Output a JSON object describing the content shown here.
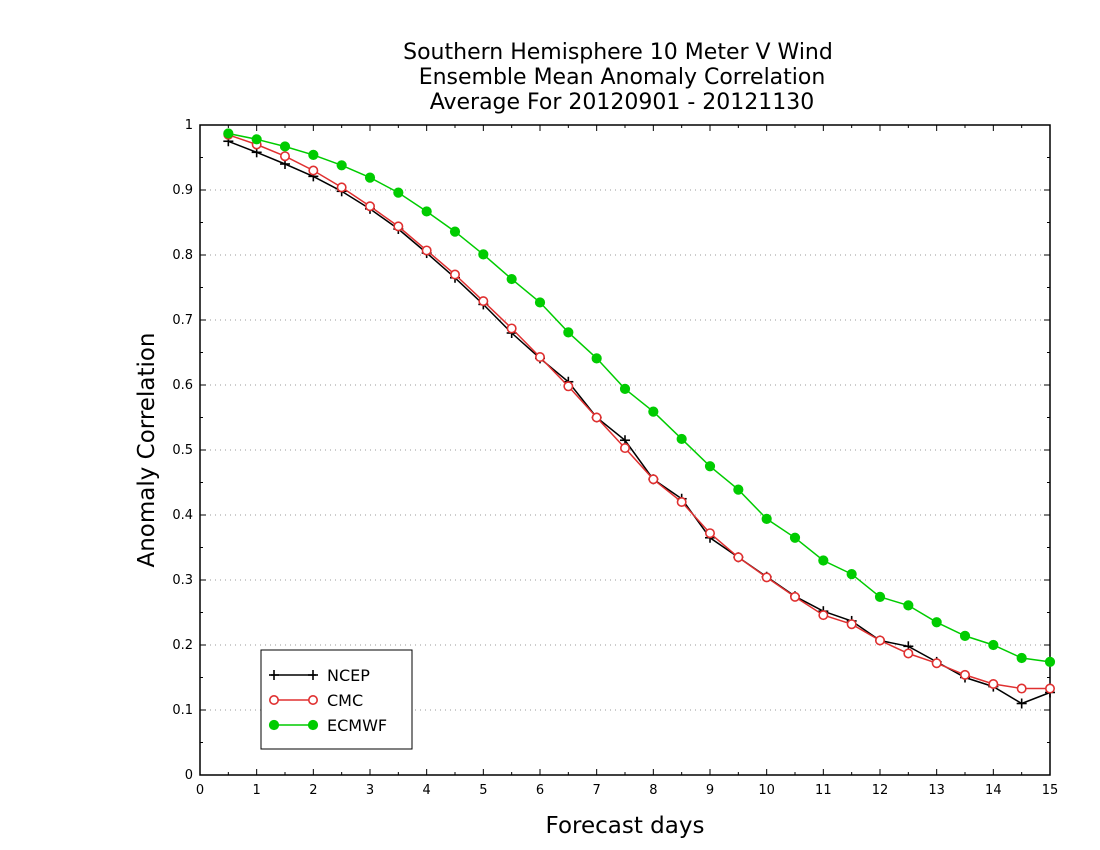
{
  "chart_data": {
    "type": "line",
    "title_lines": [
      "Southern Hemisphere 10 Meter V Wind",
      "Ensemble Mean Anomaly Correlation",
      "Average For 20120901 - 20121130"
    ],
    "xlabel": "Forecast days",
    "ylabel": "Anomaly Correlation",
    "xlim": [
      0,
      15
    ],
    "ylim": [
      0,
      1
    ],
    "x_ticks": [
      "0",
      "1",
      "2",
      "3",
      "4",
      "5",
      "6",
      "7",
      "8",
      "9",
      "10",
      "11",
      "12",
      "13",
      "14",
      "15"
    ],
    "y_ticks": [
      "0",
      "0.1",
      "0.2",
      "0.3",
      "0.4",
      "0.5",
      "0.6",
      "0.7",
      "0.8",
      "0.9",
      "1"
    ],
    "grid": "dotted horizontal",
    "legend_position": "bottom-left",
    "x": [
      0.5,
      1,
      1.5,
      2,
      2.5,
      3,
      3.5,
      4,
      4.5,
      5,
      5.5,
      6,
      6.5,
      7,
      7.5,
      8,
      8.5,
      9,
      9.5,
      10,
      10.5,
      11,
      11.5,
      12,
      12.5,
      13,
      13.5,
      14,
      14.5,
      15
    ],
    "series": [
      {
        "name": "NCEP",
        "color": "#000000",
        "marker": "plus",
        "values": [
          0.975,
          0.958,
          0.94,
          0.921,
          0.898,
          0.871,
          0.84,
          0.803,
          0.765,
          0.724,
          0.68,
          0.641,
          0.605,
          0.55,
          0.515,
          0.455,
          0.425,
          0.365,
          0.335,
          0.305,
          0.275,
          0.252,
          0.237,
          0.207,
          0.198,
          0.174,
          0.15,
          0.136,
          0.11,
          0.127
        ]
      },
      {
        "name": "CMC",
        "color": "#e03030",
        "marker": "open-circle",
        "values": [
          0.985,
          0.97,
          0.952,
          0.93,
          0.904,
          0.875,
          0.844,
          0.807,
          0.77,
          0.729,
          0.687,
          0.643,
          0.598,
          0.55,
          0.503,
          0.455,
          0.42,
          0.372,
          0.335,
          0.304,
          0.274,
          0.246,
          0.232,
          0.207,
          0.187,
          0.172,
          0.154,
          0.14,
          0.133,
          0.133
        ]
      },
      {
        "name": "ECMWF",
        "color": "#00cc00",
        "marker": "filled-circle",
        "values": [
          0.987,
          0.978,
          0.967,
          0.954,
          0.938,
          0.919,
          0.896,
          0.867,
          0.836,
          0.801,
          0.763,
          0.727,
          0.681,
          0.641,
          0.594,
          0.559,
          0.517,
          0.475,
          0.439,
          0.394,
          0.365,
          0.33,
          0.309,
          0.274,
          0.261,
          0.235,
          0.214,
          0.2,
          0.18,
          0.174
        ]
      }
    ]
  }
}
